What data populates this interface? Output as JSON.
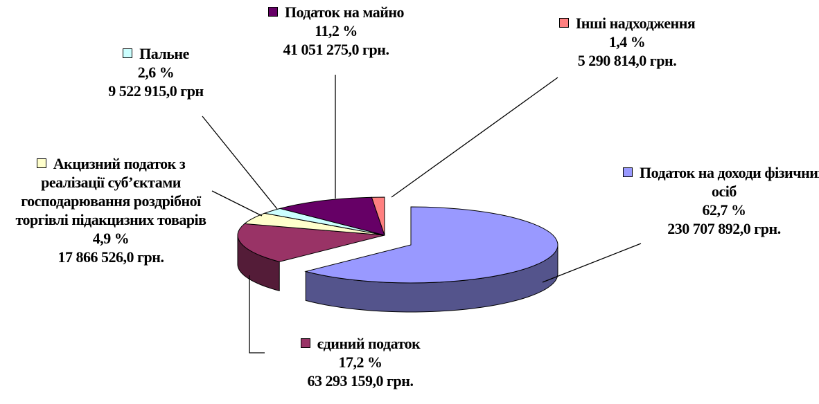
{
  "chart_data": {
    "type": "pie",
    "categories": [
      "Податок на доходи фізичних осіб",
      "єдиний податок",
      "Акцизний податок з реалізації суб’єктами господарювання роздрібної торгівлі підакцизних товарів",
      "Пальне",
      "Податок на майно",
      "Інші надходження"
    ],
    "values": [
      62.7,
      17.2,
      4.9,
      2.6,
      11.2,
      1.4
    ],
    "value_labels": [
      "62,7 %",
      "17,2 %",
      "4,9 %",
      "2,6 %",
      "11,2 %",
      "1,4 %"
    ],
    "amounts": [
      230707892,
      63293159,
      17866526,
      9522915,
      41051275,
      5290814
    ],
    "amount_labels": [
      "230 707 892,0 грн.",
      "63 293 159,0 грн.",
      "17 866 526,0 грн.",
      "9 522 915,0 грн",
      "41 051 275,0 грн.",
      "5 290 814,0 грн."
    ],
    "colors": [
      "#9999ff",
      "#993366",
      "#ffffcc",
      "#ccffff",
      "#660066",
      "#ff8080"
    ]
  }
}
